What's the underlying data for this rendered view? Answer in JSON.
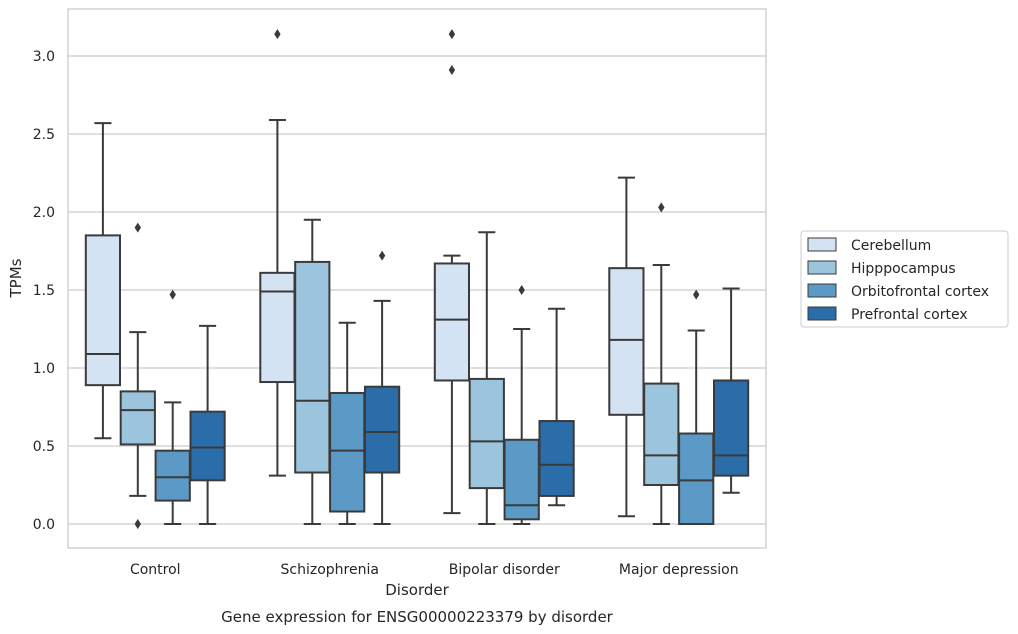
{
  "chart_data": {
    "type": "box",
    "title": "Gene expression for ENSG00000223379 by disorder",
    "xlabel": "Disorder",
    "ylabel": "TPMs",
    "ylim": [
      -0.15,
      3.3
    ],
    "yticks": [
      0.0,
      0.5,
      1.0,
      1.5,
      2.0,
      2.5,
      3.0
    ],
    "ytick_labels": [
      "0.0",
      "0.5",
      "1.0",
      "1.5",
      "2.0",
      "2.5",
      "3.0"
    ],
    "grid": "y",
    "legend_position": "right, outside plot",
    "categories": [
      "Control",
      "Schizophrenia",
      "Bipolar disorder",
      "Major depression"
    ],
    "series": [
      {
        "name": "Cerebellum",
        "color": "#d4e3f3",
        "boxes": [
          {
            "whislo": 0.55,
            "q1": 0.89,
            "med": 1.09,
            "q3": 1.85,
            "whishi": 2.57,
            "fliers": []
          },
          {
            "whislo": 0.31,
            "q1": 0.91,
            "med": 1.49,
            "q3": 1.61,
            "whishi": 2.59,
            "fliers": [
              3.14
            ]
          },
          {
            "whislo": 0.07,
            "q1": 0.92,
            "med": 1.31,
            "q3": 1.67,
            "whishi": 1.72,
            "fliers": [
              3.14,
              2.91
            ]
          },
          {
            "whislo": 0.05,
            "q1": 0.7,
            "med": 1.18,
            "q3": 1.64,
            "whishi": 2.22,
            "fliers": []
          }
        ]
      },
      {
        "name": "Hipppocampus",
        "color": "#9cc5dd",
        "boxes": [
          {
            "whislo": 0.18,
            "q1": 0.51,
            "med": 0.73,
            "q3": 0.85,
            "whishi": 1.23,
            "fliers": [
              1.9,
              0.0
            ]
          },
          {
            "whislo": 0.0,
            "q1": 0.33,
            "med": 0.79,
            "q3": 1.68,
            "whishi": 1.95,
            "fliers": []
          },
          {
            "whislo": 0.0,
            "q1": 0.23,
            "med": 0.53,
            "q3": 0.93,
            "whishi": 1.87,
            "fliers": []
          },
          {
            "whislo": 0.0,
            "q1": 0.25,
            "med": 0.44,
            "q3": 0.9,
            "whishi": 1.66,
            "fliers": [
              2.03
            ]
          }
        ]
      },
      {
        "name": "Orbitofrontal cortex",
        "color": "#5b9ac6",
        "boxes": [
          {
            "whislo": 0.0,
            "q1": 0.15,
            "med": 0.3,
            "q3": 0.47,
            "whishi": 0.78,
            "fliers": [
              1.47
            ]
          },
          {
            "whislo": 0.0,
            "q1": 0.08,
            "med": 0.47,
            "q3": 0.84,
            "whishi": 1.29,
            "fliers": []
          },
          {
            "whislo": 0.0,
            "q1": 0.03,
            "med": 0.12,
            "q3": 0.54,
            "whishi": 1.25,
            "fliers": [
              1.5
            ]
          },
          {
            "whislo": 0.0,
            "q1": 0.0,
            "med": 0.28,
            "q3": 0.58,
            "whishi": 1.24,
            "fliers": [
              1.47
            ]
          }
        ]
      },
      {
        "name": "Prefrontal cortex",
        "color": "#2b6da9",
        "boxes": [
          {
            "whislo": 0.0,
            "q1": 0.28,
            "med": 0.49,
            "q3": 0.72,
            "whishi": 1.27,
            "fliers": []
          },
          {
            "whislo": 0.0,
            "q1": 0.33,
            "med": 0.59,
            "q3": 0.88,
            "whishi": 1.43,
            "fliers": [
              1.72
            ]
          },
          {
            "whislo": 0.12,
            "q1": 0.18,
            "med": 0.38,
            "q3": 0.66,
            "whishi": 1.38,
            "fliers": []
          },
          {
            "whislo": 0.2,
            "q1": 0.31,
            "med": 0.44,
            "q3": 0.92,
            "whishi": 1.51,
            "fliers": []
          }
        ]
      }
    ]
  }
}
